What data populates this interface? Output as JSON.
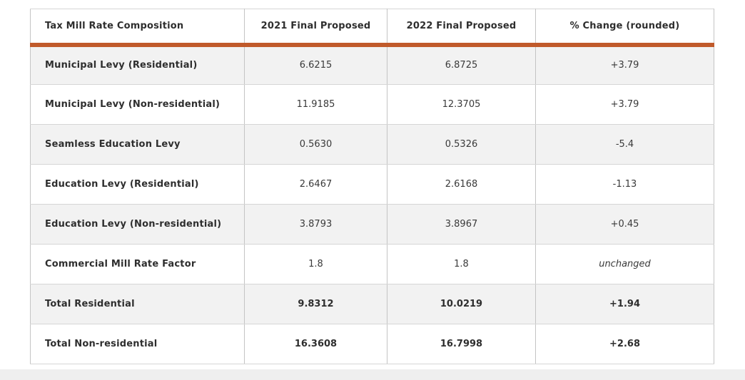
{
  "chart_data": {
    "type": "table",
    "title": "Tax Mill Rate Composition",
    "columns": [
      "Tax Mill Rate Composition",
      "2021 Final Proposed",
      "2022 Final Proposed",
      "% Change (rounded)"
    ],
    "rows": [
      [
        "Municipal Levy (Residential)",
        "6.6215",
        "6.8725",
        "+3.79"
      ],
      [
        "Municipal Levy (Non-residential)",
        "11.9185",
        "12.3705",
        "+3.79"
      ],
      [
        "Seamless Education Levy",
        "0.5630",
        "0.5326",
        "-5.4"
      ],
      [
        "Education Levy (Residential)",
        "2.6467",
        "2.6168",
        "-1.13"
      ],
      [
        "Education Levy (Non-residential)",
        "3.8793",
        "3.8967",
        "+0.45"
      ],
      [
        "Commercial Mill Rate Factor",
        "1.8",
        "1.8",
        "unchanged"
      ],
      [
        "Total Residential",
        "9.8312",
        "10.0219",
        "+1.94"
      ],
      [
        "Total Non-residential",
        "16.3608",
        "16.7998",
        "+2.68"
      ]
    ],
    "row_emphasis": [
      "normal",
      "normal",
      "normal",
      "normal",
      "normal",
      "italic-change",
      "total",
      "total"
    ],
    "layout_hints": {
      "striped_rows": "odd-gray",
      "header_divider_color": "accent"
    }
  },
  "colors": {
    "accent": "#c05a2b",
    "stripe": "#f2f2f2",
    "border": "#c4c4c4",
    "text": "#3a3a3a"
  }
}
